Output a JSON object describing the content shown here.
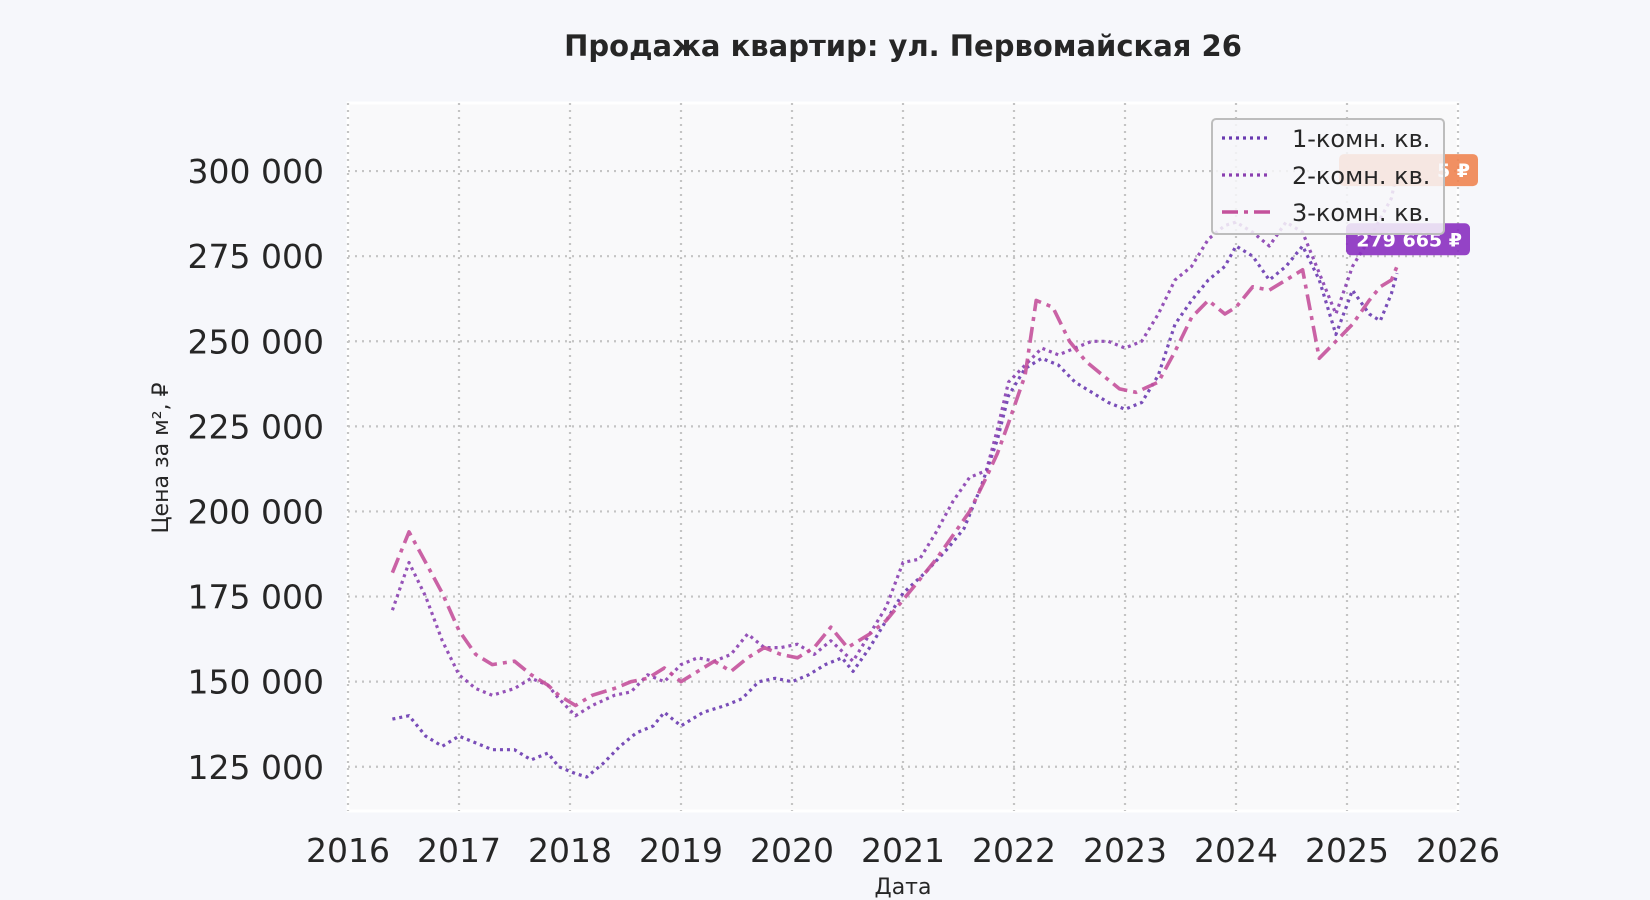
{
  "chart_data": {
    "type": "line",
    "title": "Продажа квартир: ул. Первомайская 26",
    "xlabel": "Дата",
    "ylabel": "Цена за м², ₽",
    "xlim": [
      2016.0,
      2026.0
    ],
    "ylim": [
      112000,
      320000
    ],
    "x_ticks": [
      {
        "value": 2016,
        "label": "2016"
      },
      {
        "value": 2017,
        "label": "2017"
      },
      {
        "value": 2018,
        "label": "2018"
      },
      {
        "value": 2019,
        "label": "2019"
      },
      {
        "value": 2020,
        "label": "2020"
      },
      {
        "value": 2021,
        "label": "2021"
      },
      {
        "value": 2022,
        "label": "2022"
      },
      {
        "value": 2023,
        "label": "2023"
      },
      {
        "value": 2024,
        "label": "2024"
      },
      {
        "value": 2025,
        "label": "2025"
      },
      {
        "value": 2026,
        "label": "2026"
      }
    ],
    "y_ticks": [
      {
        "value": 125000,
        "label": "125 000"
      },
      {
        "value": 150000,
        "label": "150 000"
      },
      {
        "value": 175000,
        "label": "175 000"
      },
      {
        "value": 200000,
        "label": "200 000"
      },
      {
        "value": 225000,
        "label": "225 000"
      },
      {
        "value": 250000,
        "label": "250 000"
      },
      {
        "value": 275000,
        "label": "275 000"
      },
      {
        "value": 300000,
        "label": "300 000"
      }
    ],
    "grid": true,
    "legend_position": "top-right",
    "series": [
      {
        "name": "1-комн. кв.",
        "color": "#6a3ab0",
        "style": "dotted",
        "points": [
          [
            2016.4,
            139000
          ],
          [
            2016.55,
            140000
          ],
          [
            2016.7,
            134000
          ],
          [
            2016.85,
            131000
          ],
          [
            2017.0,
            134000
          ],
          [
            2017.15,
            132000
          ],
          [
            2017.3,
            130000
          ],
          [
            2017.5,
            130000
          ],
          [
            2017.65,
            127000
          ],
          [
            2017.8,
            129000
          ],
          [
            2017.9,
            125000
          ],
          [
            2018.05,
            123000
          ],
          [
            2018.15,
            122000
          ],
          [
            2018.3,
            126000
          ],
          [
            2018.45,
            131000
          ],
          [
            2018.6,
            135000
          ],
          [
            2018.75,
            137000
          ],
          [
            2018.85,
            141000
          ],
          [
            2019.0,
            137000
          ],
          [
            2019.2,
            141000
          ],
          [
            2019.4,
            143000
          ],
          [
            2019.55,
            145000
          ],
          [
            2019.7,
            150000
          ],
          [
            2019.85,
            151000
          ],
          [
            2020.0,
            150000
          ],
          [
            2020.15,
            152000
          ],
          [
            2020.3,
            155000
          ],
          [
            2020.45,
            157000
          ],
          [
            2020.55,
            153000
          ],
          [
            2020.7,
            160000
          ],
          [
            2020.85,
            168000
          ],
          [
            2021.0,
            176000
          ],
          [
            2021.2,
            182000
          ],
          [
            2021.4,
            189000
          ],
          [
            2021.55,
            195000
          ],
          [
            2021.7,
            207000
          ],
          [
            2021.85,
            221000
          ],
          [
            2021.95,
            234000
          ],
          [
            2022.1,
            242000
          ],
          [
            2022.25,
            245000
          ],
          [
            2022.4,
            243000
          ],
          [
            2022.55,
            238000
          ],
          [
            2022.7,
            235000
          ],
          [
            2022.85,
            232000
          ],
          [
            2023.0,
            230000
          ],
          [
            2023.15,
            232000
          ],
          [
            2023.3,
            240000
          ],
          [
            2023.45,
            255000
          ],
          [
            2023.6,
            262000
          ],
          [
            2023.75,
            268000
          ],
          [
            2023.9,
            272000
          ],
          [
            2024.0,
            278000
          ],
          [
            2024.15,
            275000
          ],
          [
            2024.3,
            268000
          ],
          [
            2024.45,
            272000
          ],
          [
            2024.6,
            278000
          ],
          [
            2024.75,
            268000
          ],
          [
            2024.9,
            252000
          ],
          [
            2025.05,
            265000
          ],
          [
            2025.2,
            258000
          ],
          [
            2025.3,
            256000
          ],
          [
            2025.4,
            264000
          ],
          [
            2025.45,
            270000
          ]
        ]
      },
      {
        "name": "2-комн. кв.",
        "color": "#8a3fb0",
        "style": "dotted",
        "points": [
          [
            2016.4,
            171000
          ],
          [
            2016.55,
            185000
          ],
          [
            2016.7,
            175000
          ],
          [
            2016.85,
            162000
          ],
          [
            2017.0,
            152000
          ],
          [
            2017.15,
            148000
          ],
          [
            2017.3,
            146000
          ],
          [
            2017.5,
            148000
          ],
          [
            2017.65,
            151000
          ],
          [
            2017.8,
            149000
          ],
          [
            2017.9,
            145000
          ],
          [
            2018.05,
            140000
          ],
          [
            2018.2,
            143000
          ],
          [
            2018.4,
            146000
          ],
          [
            2018.55,
            147000
          ],
          [
            2018.7,
            152000
          ],
          [
            2018.85,
            150000
          ],
          [
            2019.0,
            155000
          ],
          [
            2019.15,
            157000
          ],
          [
            2019.3,
            156000
          ],
          [
            2019.45,
            158000
          ],
          [
            2019.6,
            164000
          ],
          [
            2019.75,
            160000
          ],
          [
            2019.9,
            160000
          ],
          [
            2020.05,
            161000
          ],
          [
            2020.2,
            158000
          ],
          [
            2020.35,
            162000
          ],
          [
            2020.55,
            156000
          ],
          [
            2020.7,
            164000
          ],
          [
            2020.85,
            172000
          ],
          [
            2021.0,
            185000
          ],
          [
            2021.15,
            186000
          ],
          [
            2021.3,
            194000
          ],
          [
            2021.45,
            203000
          ],
          [
            2021.6,
            210000
          ],
          [
            2021.75,
            212000
          ],
          [
            2021.85,
            224000
          ],
          [
            2021.95,
            238000
          ],
          [
            2022.1,
            243000
          ],
          [
            2022.25,
            248000
          ],
          [
            2022.4,
            246000
          ],
          [
            2022.55,
            248000
          ],
          [
            2022.7,
            250000
          ],
          [
            2022.85,
            250000
          ],
          [
            2023.0,
            248000
          ],
          [
            2023.15,
            250000
          ],
          [
            2023.3,
            258000
          ],
          [
            2023.45,
            268000
          ],
          [
            2023.6,
            272000
          ],
          [
            2023.75,
            280000
          ],
          [
            2023.9,
            284000
          ],
          [
            2024.0,
            285000
          ],
          [
            2024.15,
            282000
          ],
          [
            2024.3,
            278000
          ],
          [
            2024.45,
            285000
          ],
          [
            2024.6,
            282000
          ],
          [
            2024.75,
            270000
          ],
          [
            2024.9,
            258000
          ],
          [
            2025.05,
            272000
          ],
          [
            2025.2,
            280000
          ],
          [
            2025.3,
            286000
          ],
          [
            2025.4,
            292000
          ],
          [
            2025.45,
            300000
          ]
        ]
      },
      {
        "name": "3-комн. кв.",
        "color": "#c4519b",
        "style": "dashdot",
        "points": [
          [
            2016.4,
            182000
          ],
          [
            2016.55,
            194000
          ],
          [
            2016.7,
            185000
          ],
          [
            2016.85,
            176000
          ],
          [
            2017.0,
            165000
          ],
          [
            2017.15,
            158000
          ],
          [
            2017.3,
            155000
          ],
          [
            2017.5,
            156000
          ],
          [
            2017.65,
            152000
          ],
          [
            2017.8,
            149000
          ],
          [
            2017.9,
            146000
          ],
          [
            2018.05,
            143000
          ],
          [
            2018.2,
            146000
          ],
          [
            2018.4,
            148000
          ],
          [
            2018.55,
            150000
          ],
          [
            2018.7,
            151000
          ],
          [
            2018.85,
            154000
          ],
          [
            2019.0,
            150000
          ],
          [
            2019.15,
            153000
          ],
          [
            2019.3,
            156000
          ],
          [
            2019.45,
            153000
          ],
          [
            2019.6,
            157000
          ],
          [
            2019.75,
            160000
          ],
          [
            2019.9,
            158000
          ],
          [
            2020.05,
            157000
          ],
          [
            2020.2,
            160000
          ],
          [
            2020.35,
            166000
          ],
          [
            2020.5,
            160000
          ],
          [
            2020.7,
            164000
          ],
          [
            2020.85,
            168000
          ],
          [
            2021.0,
            174000
          ],
          [
            2021.15,
            180000
          ],
          [
            2021.3,
            186000
          ],
          [
            2021.45,
            193000
          ],
          [
            2021.6,
            200000
          ],
          [
            2021.75,
            210000
          ],
          [
            2021.85,
            217000
          ],
          [
            2021.95,
            226000
          ],
          [
            2022.1,
            240000
          ],
          [
            2022.2,
            262000
          ],
          [
            2022.35,
            260000
          ],
          [
            2022.5,
            250000
          ],
          [
            2022.65,
            244000
          ],
          [
            2022.8,
            240000
          ],
          [
            2022.95,
            236000
          ],
          [
            2023.1,
            235000
          ],
          [
            2023.3,
            238000
          ],
          [
            2023.45,
            247000
          ],
          [
            2023.6,
            257000
          ],
          [
            2023.75,
            262000
          ],
          [
            2023.9,
            258000
          ],
          [
            2024.0,
            260000
          ],
          [
            2024.15,
            266000
          ],
          [
            2024.3,
            265000
          ],
          [
            2024.45,
            268000
          ],
          [
            2024.6,
            271000
          ],
          [
            2024.75,
            245000
          ],
          [
            2024.9,
            250000
          ],
          [
            2025.05,
            255000
          ],
          [
            2025.2,
            262000
          ],
          [
            2025.3,
            266000
          ],
          [
            2025.4,
            268000
          ],
          [
            2025.45,
            272000
          ]
        ]
      }
    ],
    "annotations": [
      {
        "text": "279 665 ₽",
        "x": 2025.45,
        "y": 279665,
        "color": "#8a2fc0"
      },
      {
        "text": "5 ₽",
        "x": 2025.45,
        "y": 300000,
        "color": "#ef8451"
      }
    ]
  }
}
